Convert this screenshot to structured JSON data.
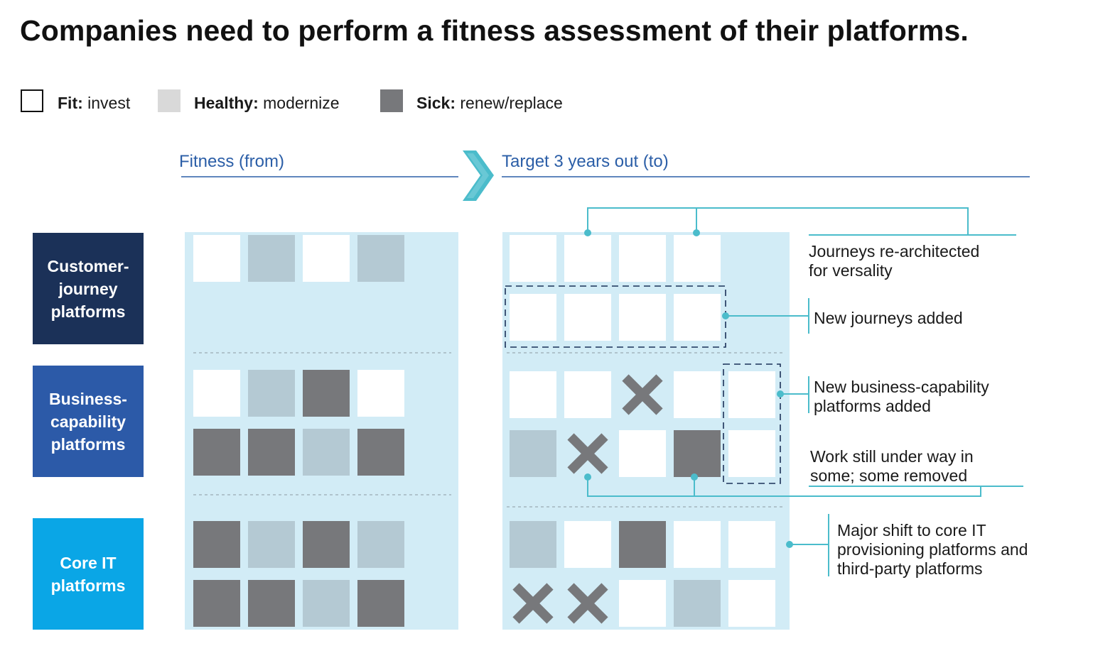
{
  "title": "Companies need to perform a fitness assessment of their platforms.",
  "colors": {
    "fit": "#ffffff",
    "healthy": "#b4c9d3",
    "healthy_legend": "#d9d9d9",
    "sick": "#77787b",
    "panel": "#d2ecf6",
    "accent_line": "#4bbccb",
    "heading_blue": "#2b5ea7",
    "cat_customer": "#1b3158",
    "cat_business": "#2c5aa8",
    "cat_core": "#0aa6e6",
    "dashed_box": "#1b3158"
  },
  "legend": [
    {
      "status": "fit",
      "bold": "Fit:",
      "text": " invest"
    },
    {
      "status": "healthy",
      "bold": "Healthy:",
      "text": " modernize"
    },
    {
      "status": "sick",
      "bold": "Sick:",
      "text": " renew/replace"
    }
  ],
  "headers": {
    "from": "Fitness (from)",
    "to": "Target 3 years out (to)"
  },
  "categories": [
    {
      "lines": [
        "Customer-",
        "journey",
        "platforms"
      ]
    },
    {
      "lines": [
        "Business-",
        "capability",
        "platforms"
      ]
    },
    {
      "lines": [
        "Core IT",
        "platforms"
      ]
    }
  ],
  "from_grid": [
    [
      [
        "fit",
        "healthy",
        "fit",
        "healthy"
      ]
    ],
    [
      [
        "fit",
        "healthy",
        "sick",
        "fit"
      ],
      [
        "sick",
        "sick",
        "healthy",
        "sick"
      ]
    ],
    [
      [
        "sick",
        "healthy",
        "sick",
        "healthy"
      ],
      [
        "sick",
        "sick",
        "healthy",
        "sick"
      ]
    ]
  ],
  "to_grid": [
    [
      [
        "fit",
        "fit",
        "fit",
        "fit"
      ],
      [
        "fit",
        "fit",
        "fit",
        "fit"
      ]
    ],
    [
      [
        "fit",
        "fit",
        "removed",
        "fit",
        "fit"
      ],
      [
        "healthy",
        "removed",
        "fit",
        "sick",
        "fit"
      ]
    ],
    [
      [
        "healthy",
        "fit",
        "sick",
        "fit",
        "fit"
      ],
      [
        "removed",
        "removed",
        "fit",
        "healthy",
        "fit"
      ]
    ]
  ],
  "annotations": [
    {
      "lines": [
        "Journeys re-architected",
        "for versality"
      ]
    },
    {
      "lines": [
        "New journeys added"
      ]
    },
    {
      "lines": [
        "New business-capability",
        "platforms added"
      ]
    },
    {
      "lines": [
        "Work still under way in",
        "some; some removed"
      ]
    },
    {
      "lines": [
        "Major shift to core IT",
        "provisioning platforms and",
        "third-party platforms"
      ]
    }
  ]
}
